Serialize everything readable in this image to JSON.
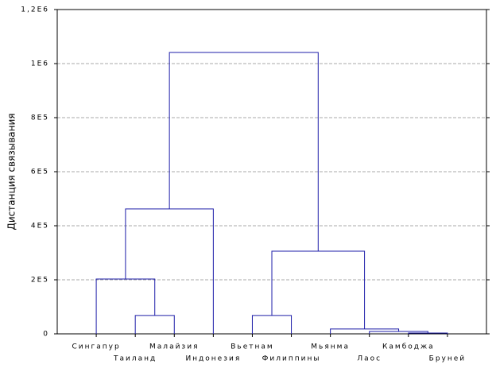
{
  "chart_data": {
    "type": "dendrogram",
    "ylabel": "Дистанция связывания",
    "ylim": [
      0,
      1200000
    ],
    "yticks": [
      0,
      {
        "value": 200000,
        "label": "2E5"
      },
      {
        "value": 400000,
        "label": "4E5"
      },
      {
        "value": 600000,
        "label": "6E5"
      },
      {
        "value": 800000,
        "label": "8E5"
      },
      {
        "value": 1000000,
        "label": "1E6"
      },
      {
        "value": 1200000,
        "label": "1,2E6"
      }
    ],
    "grid": true,
    "color": "#1c1ca8",
    "tree": {
      "height": 1041000,
      "children": [
        {
          "height": 462000,
          "children": [
            {
              "height": 203000,
              "children": [
                "Сингапур",
                {
                  "height": 68000,
                  "children": [
                    "Таиланд",
                    "Малайзия"
                  ]
                }
              ]
            },
            "Индонезия"
          ]
        },
        {
          "height": 306000,
          "children": [
            {
              "height": 68000,
              "children": [
                "Вьетнам",
                "Филиппины"
              ]
            },
            {
              "height": 18000,
              "children": [
                "Мьянма",
                {
                  "height": 9000,
                  "children": [
                    "Лаос",
                    {
                      "height": 3000,
                      "children": [
                        "Камбоджа",
                        "Бруней"
                      ]
                    }
                  ]
                }
              ]
            }
          ]
        }
      ]
    }
  }
}
